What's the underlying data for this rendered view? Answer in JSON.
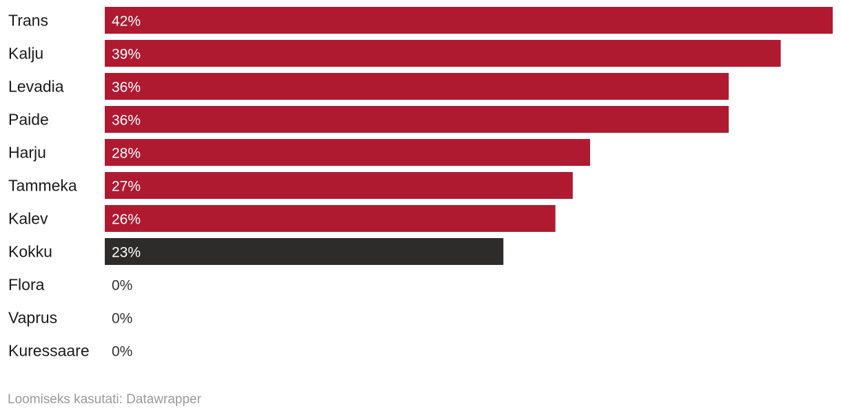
{
  "chart_data": {
    "type": "bar",
    "orientation": "horizontal",
    "categories": [
      "Trans",
      "Kalju",
      "Levadia",
      "Paide",
      "Harju",
      "Tammeka",
      "Kalev",
      "Kokku",
      "Flora",
      "Vaprus",
      "Kuressaare"
    ],
    "values": [
      42,
      39,
      36,
      36,
      28,
      27,
      26,
      23,
      0,
      0,
      0
    ],
    "value_labels": [
      "42%",
      "39%",
      "36%",
      "36%",
      "28%",
      "27%",
      "26%",
      "23%",
      "0%",
      "0%",
      "0%"
    ],
    "unit": "%",
    "xlim": [
      0,
      42
    ],
    "grid": false,
    "legend": "none",
    "colors": {
      "default": "#b01a31",
      "highlight": "#2e2c2a",
      "highlight_category": "Kokku",
      "label_inside": "#ffffff",
      "label_outside": "#333333"
    }
  },
  "footer": {
    "credit": "Loomiseks kasutati: Datawrapper"
  }
}
